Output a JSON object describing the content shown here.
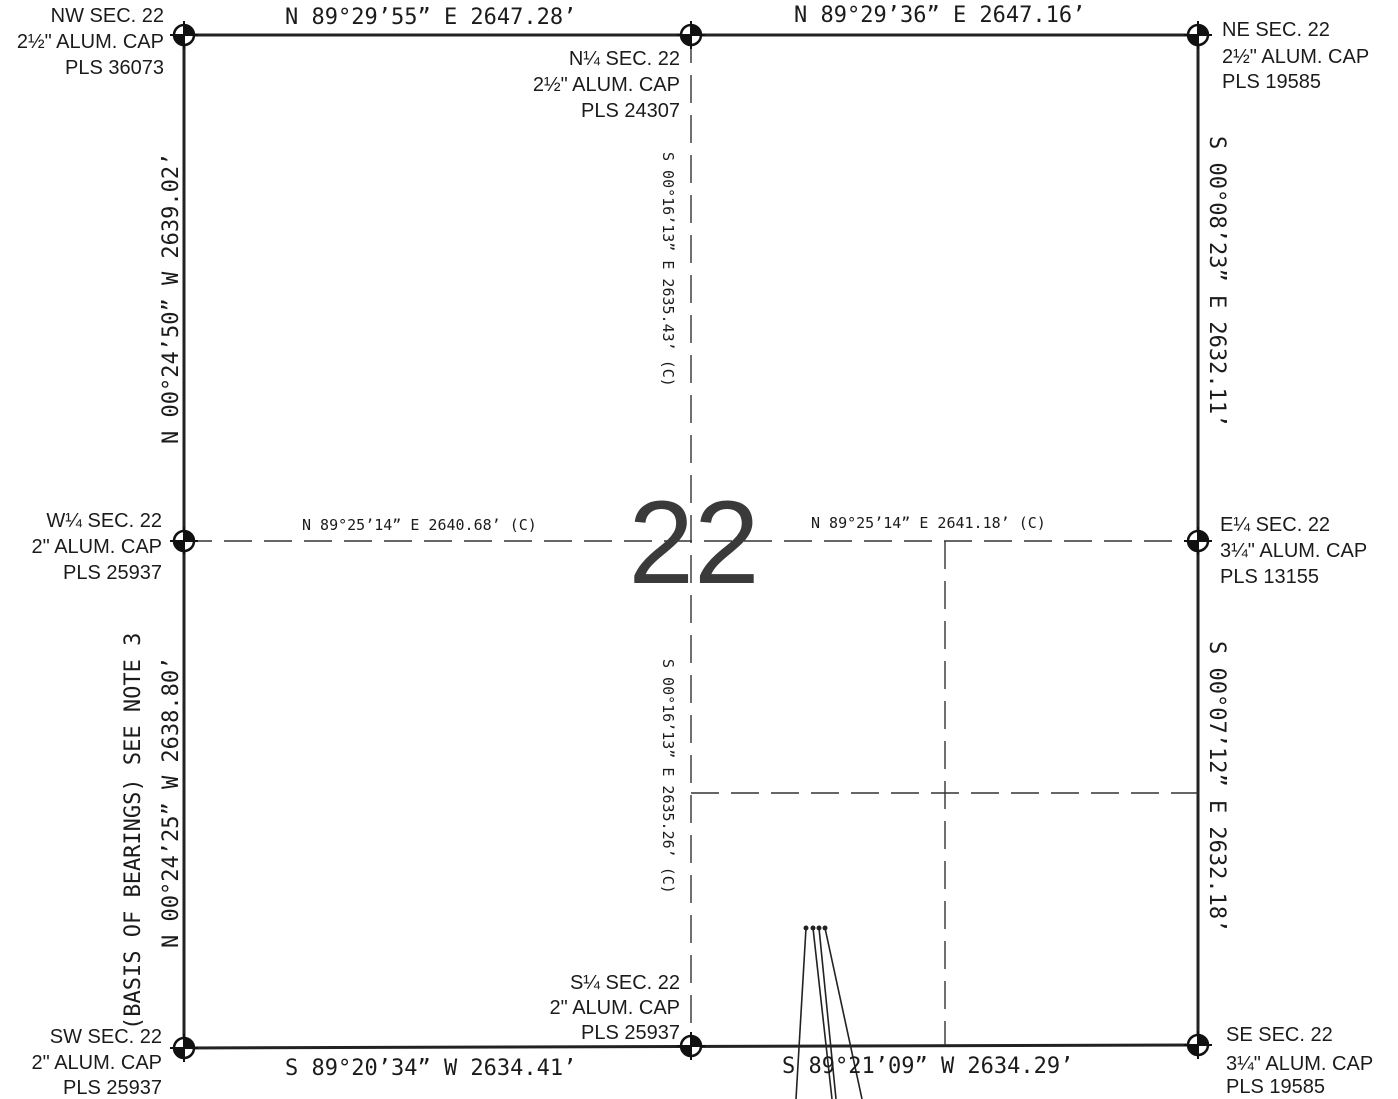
{
  "section_number": "22",
  "corners": {
    "nw": {
      "l1": "NW SEC. 22",
      "l2": "2½\" ALUM. CAP",
      "l3": "PLS 36073"
    },
    "n14": {
      "l1": "N¼ SEC. 22",
      "l2": "2½\" ALUM. CAP",
      "l3": "PLS 24307"
    },
    "ne": {
      "l1": "NE SEC. 22",
      "l2": "2½\" ALUM. CAP",
      "l3": "PLS 19585"
    },
    "w14": {
      "l1": "W¼ SEC. 22",
      "l2": "2\" ALUM. CAP",
      "l3": "PLS 25937"
    },
    "e14": {
      "l1": "E¼ SEC. 22",
      "l2": "3¼\" ALUM. CAP",
      "l3": "PLS 13155"
    },
    "sw": {
      "l1": "SW SEC. 22",
      "l2": "2\" ALUM. CAP",
      "l3": "PLS 25937"
    },
    "s14": {
      "l1": "S¼ SEC. 22",
      "l2": "2\" ALUM. CAP",
      "l3": "PLS 25937"
    },
    "se": {
      "l1": "SE SEC. 22",
      "l2": "3¼\" ALUM. CAP",
      "l3": "PLS 19585"
    }
  },
  "bearings": {
    "north_west_half": "N 89°29’55”  E   2647.28’",
    "north_east_half": "N 89°29’36”  E   2647.16’",
    "center_west_half": "N 89°25’14”  E   2640.68’ (C)",
    "center_east_half": "N 89°25’14”  E   2641.18’ (C)",
    "south_west_half": "S 89°20’34”  W   2634.41’",
    "south_east_half": "S 89°21’09”  W   2634.29’",
    "west_north_half": "N 00°24’50”  W   2639.02’",
    "west_south_half": "N 00°24’25”  W   2638.80’",
    "west_note": "(BASIS OF BEARINGS) SEE NOTE 3",
    "center_north_half": "S 00°16’13”  E   2635.43’ (C)",
    "center_south_half": "S 00°16’13”  E   2635.26’ (C)",
    "east_north_half": "S 00°08’23”  E   2632.11’",
    "east_south_half": "S 00°07’12”  E   2632.18’"
  }
}
